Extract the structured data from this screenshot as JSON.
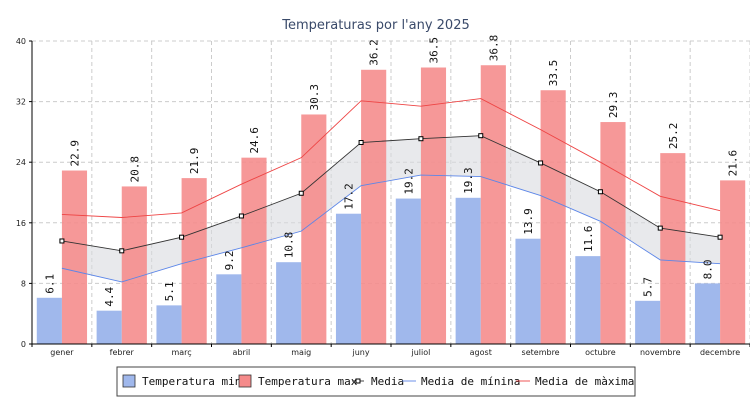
{
  "chart_data": {
    "type": "bar",
    "title": "Temperaturas por l'any 2025",
    "categories": [
      "gener",
      "febrer",
      "març",
      "abril",
      "maig",
      "juny",
      "juliol",
      "agost",
      "setembre",
      "octubre",
      "novembre",
      "decembre"
    ],
    "ylim": [
      0,
      40
    ],
    "yticks": [
      "0",
      "8",
      "16",
      "24",
      "32",
      "40"
    ],
    "grid": true,
    "legend_position": "bottom",
    "series": [
      {
        "name": "Temperatura min",
        "kind": "bar",
        "color": "#a0b8ec",
        "values": [
          6.1,
          4.4,
          5.1,
          9.2,
          10.8,
          17.2,
          19.2,
          19.3,
          13.9,
          11.6,
          5.7,
          8.0
        ]
      },
      {
        "name": "Temperatura max",
        "kind": "bar",
        "color": "#f58a8a",
        "values": [
          22.9,
          20.8,
          21.9,
          24.6,
          30.3,
          36.2,
          36.5,
          36.8,
          33.5,
          29.3,
          25.2,
          21.6
        ]
      },
      {
        "name": "Media",
        "kind": "line",
        "color": "#333333",
        "marker": "square",
        "values": [
          13.6,
          12.3,
          14.1,
          16.9,
          19.9,
          26.6,
          27.1,
          27.5,
          23.9,
          20.1,
          15.3,
          14.1
        ]
      },
      {
        "name": "Media de mínina",
        "kind": "line",
        "color": "#5c86e8",
        "values": [
          10.0,
          8.2,
          10.6,
          12.7,
          14.9,
          20.9,
          22.3,
          22.1,
          19.6,
          16.2,
          11.1,
          10.6
        ]
      },
      {
        "name": "Media de màxima",
        "kind": "line",
        "color": "#ee4444",
        "values": [
          17.1,
          16.7,
          17.3,
          21.1,
          24.6,
          32.1,
          31.4,
          32.4,
          28.3,
          24.0,
          19.5,
          17.6
        ]
      }
    ],
    "data_labels_min": [
      "6.1",
      "4.4",
      "5.1",
      "9.2",
      "10.8",
      "17.2",
      "19.2",
      "19.3",
      "13.9",
      "11.6",
      "5.7",
      "8.0"
    ],
    "data_labels_max": [
      "22.9",
      "20.8",
      "21.9",
      "24.6",
      "30.3",
      "36.2",
      "36.5",
      "36.8",
      "33.5",
      "29.3",
      "25.2",
      "21.6"
    ]
  }
}
